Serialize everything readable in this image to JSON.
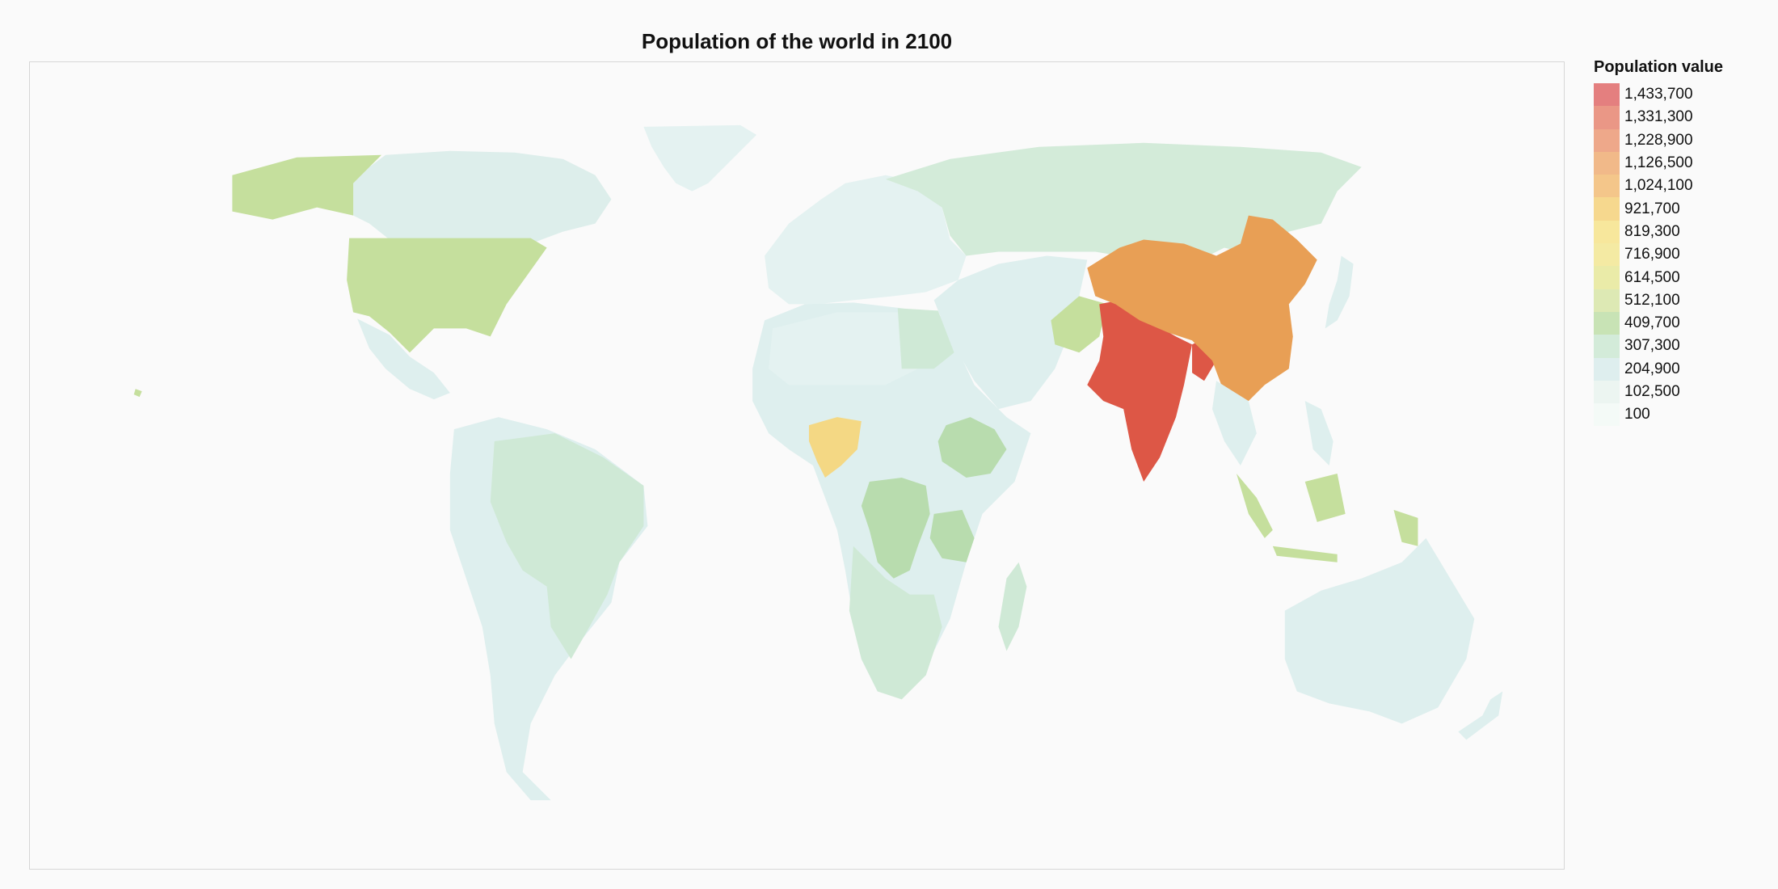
{
  "map": {
    "title": "Population of the world in 2100"
  },
  "legend": {
    "title": "Population value",
    "items": [
      {
        "label": "1,433,700",
        "color": "#e47f7f"
      },
      {
        "label": "1,331,300",
        "color": "#ea9786"
      },
      {
        "label": "1,228,900",
        "color": "#eea88a"
      },
      {
        "label": "1,126,500",
        "color": "#f1b989"
      },
      {
        "label": "1,024,100",
        "color": "#f4c68a"
      },
      {
        "label": "921,700",
        "color": "#f6d88e"
      },
      {
        "label": "819,300",
        "color": "#f7e79c"
      },
      {
        "label": "716,900",
        "color": "#f4eaa3"
      },
      {
        "label": "614,500",
        "color": "#eaeba8"
      },
      {
        "label": "512,100",
        "color": "#dde9b4"
      },
      {
        "label": "409,700",
        "color": "#c8e3b5"
      },
      {
        "label": "307,300",
        "color": "#d3ebd9"
      },
      {
        "label": "204,900",
        "color": "#deeeee"
      },
      {
        "label": "102,500",
        "color": "#ecf5f1"
      },
      {
        "label": "100",
        "color": "#f4faf7"
      }
    ]
  },
  "colors": {
    "india": "#dd5746",
    "china": "#e89f55",
    "nigeria": "#f4d884",
    "usa": "#c5df9d",
    "mid_green": "#b8dcae",
    "light_green": "#cfe9d6",
    "pale_blue": "#deefee",
    "very_pale": "#e6f3f2"
  }
}
